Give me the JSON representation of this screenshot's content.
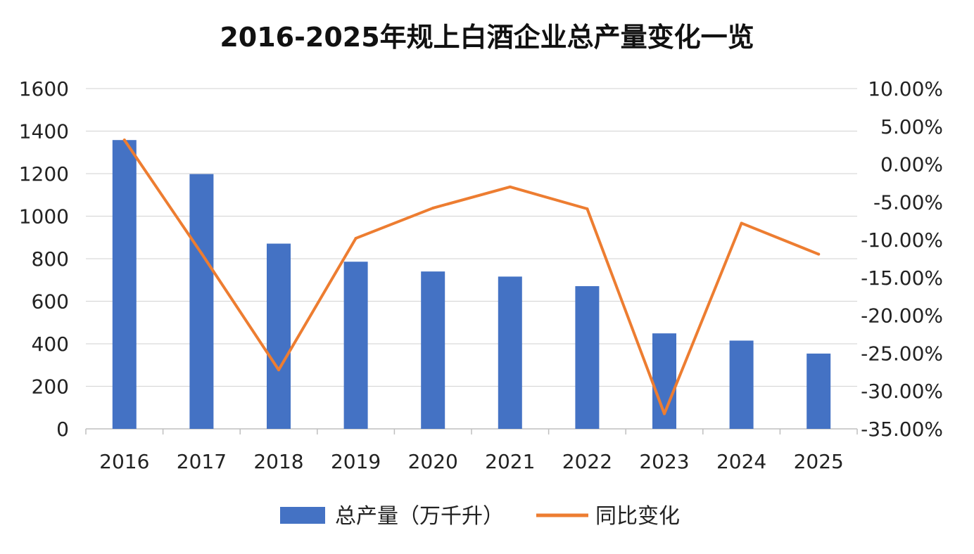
{
  "chart_data": {
    "type": "bar",
    "title": "2016-2025年规上白酒企业总产量变化一览",
    "xlabel": "",
    "ylabel": "",
    "categories": [
      "2016",
      "2017",
      "2018",
      "2019",
      "2020",
      "2021",
      "2022",
      "2023",
      "2024",
      "2025"
    ],
    "series": [
      {
        "name": "总产量（万千升）",
        "type": "bar",
        "axis": "left",
        "color": "#4472c4",
        "values": [
          1358,
          1198,
          871,
          786,
          740,
          716,
          671,
          449,
          415,
          354
        ]
      },
      {
        "name": "同比变化",
        "type": "line",
        "axis": "right",
        "color": "#ed7d31",
        "values": [
          3.2,
          -11.8,
          -27.2,
          -9.8,
          -5.8,
          -3.0,
          -5.9,
          -33.0,
          -7.8,
          -11.9
        ]
      }
    ],
    "ylim": [
      0,
      1600
    ],
    "yticks": [
      "0",
      "200",
      "400",
      "600",
      "800",
      "1000",
      "1200",
      "1400",
      "1600"
    ],
    "y2lim": [
      -35,
      10
    ],
    "y2ticks": [
      "-35.00%",
      "-30.00%",
      "-25.00%",
      "-20.00%",
      "-15.00%",
      "-10.00%",
      "-5.00%",
      "0.00%",
      "5.00%",
      "10.00%"
    ],
    "grid": true,
    "legend_position": "bottom"
  }
}
